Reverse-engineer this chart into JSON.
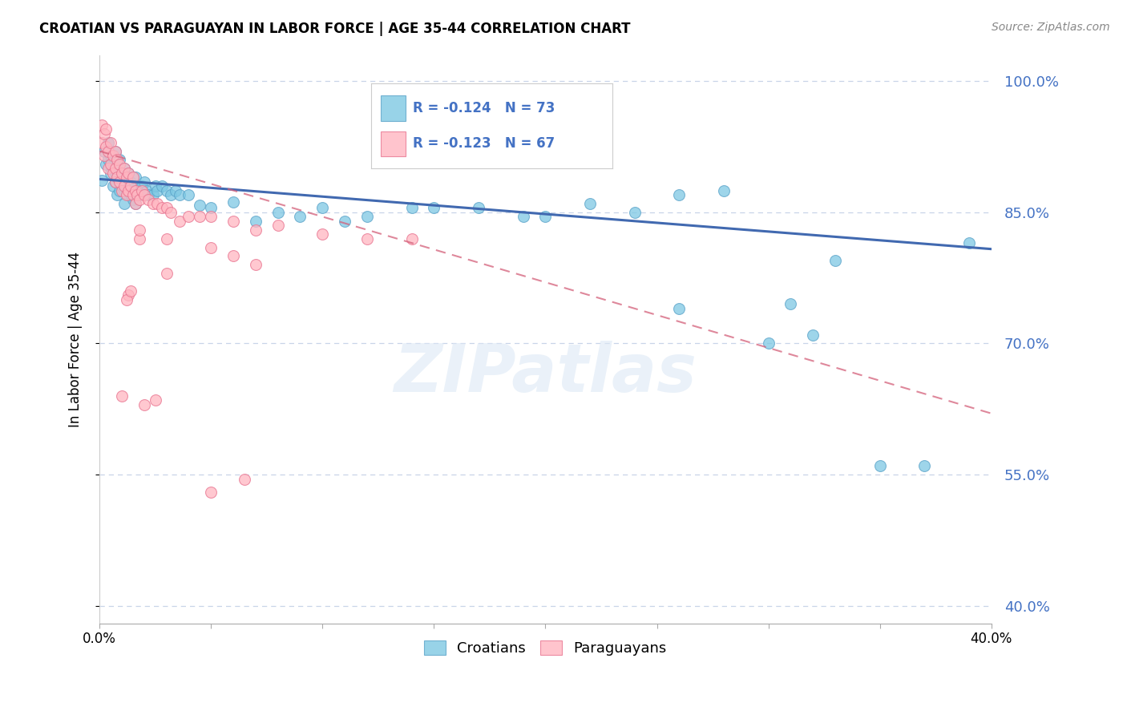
{
  "title": "CROATIAN VS PARAGUAYAN IN LABOR FORCE | AGE 35-44 CORRELATION CHART",
  "source": "Source: ZipAtlas.com",
  "ylabel": "In Labor Force | Age 35-44",
  "xlim": [
    0.0,
    0.4
  ],
  "ylim": [
    0.38,
    1.03
  ],
  "yticks": [
    0.4,
    0.55,
    0.7,
    0.85,
    1.0
  ],
  "ytick_labels": [
    "40.0%",
    "55.0%",
    "70.0%",
    "85.0%",
    "100.0%"
  ],
  "legend_blue_r": "-0.124",
  "legend_blue_n": "73",
  "legend_pink_r": "-0.123",
  "legend_pink_n": "67",
  "blue_color": "#7ec8e3",
  "pink_color": "#ffb6c1",
  "blue_edge": "#5ba3c9",
  "pink_edge": "#e87490",
  "blue_line_color": "#4169b0",
  "pink_line_color": "#d4607a",
  "axis_color": "#4472c4",
  "watermark": "ZIPatlas",
  "blue_x": [
    0.001,
    0.002,
    0.003,
    0.004,
    0.004,
    0.005,
    0.005,
    0.006,
    0.006,
    0.007,
    0.007,
    0.007,
    0.008,
    0.008,
    0.008,
    0.009,
    0.009,
    0.01,
    0.01,
    0.011,
    0.011,
    0.011,
    0.012,
    0.012,
    0.013,
    0.013,
    0.014,
    0.014,
    0.015,
    0.015,
    0.016,
    0.016,
    0.017,
    0.018,
    0.019,
    0.02,
    0.021,
    0.022,
    0.024,
    0.025,
    0.026,
    0.028,
    0.03,
    0.032,
    0.034,
    0.036,
    0.04,
    0.045,
    0.05,
    0.06,
    0.07,
    0.08,
    0.09,
    0.1,
    0.11,
    0.12,
    0.14,
    0.15,
    0.17,
    0.19,
    0.2,
    0.22,
    0.24,
    0.26,
    0.28,
    0.3,
    0.32,
    0.35,
    0.37,
    0.39,
    0.26,
    0.31,
    0.33
  ],
  "blue_y": [
    0.887,
    0.92,
    0.905,
    0.93,
    0.91,
    0.895,
    0.915,
    0.9,
    0.88,
    0.895,
    0.92,
    0.885,
    0.905,
    0.89,
    0.87,
    0.91,
    0.875,
    0.895,
    0.88,
    0.9,
    0.875,
    0.86,
    0.89,
    0.875,
    0.895,
    0.87,
    0.885,
    0.87,
    0.88,
    0.865,
    0.86,
    0.89,
    0.875,
    0.87,
    0.88,
    0.885,
    0.875,
    0.87,
    0.87,
    0.88,
    0.875,
    0.88,
    0.875,
    0.87,
    0.875,
    0.87,
    0.87,
    0.858,
    0.855,
    0.862,
    0.84,
    0.85,
    0.845,
    0.855,
    0.84,
    0.845,
    0.855,
    0.855,
    0.855,
    0.845,
    0.845,
    0.86,
    0.85,
    0.87,
    0.875,
    0.7,
    0.71,
    0.56,
    0.56,
    0.815,
    0.74,
    0.745,
    0.795
  ],
  "pink_x": [
    0.001,
    0.001,
    0.002,
    0.002,
    0.003,
    0.003,
    0.004,
    0.004,
    0.005,
    0.005,
    0.006,
    0.006,
    0.007,
    0.007,
    0.007,
    0.008,
    0.008,
    0.009,
    0.009,
    0.01,
    0.01,
    0.011,
    0.011,
    0.012,
    0.012,
    0.013,
    0.013,
    0.014,
    0.015,
    0.015,
    0.016,
    0.016,
    0.017,
    0.018,
    0.019,
    0.02,
    0.022,
    0.024,
    0.026,
    0.028,
    0.03,
    0.032,
    0.036,
    0.04,
    0.045,
    0.05,
    0.06,
    0.07,
    0.08,
    0.1,
    0.12,
    0.14,
    0.03,
    0.05,
    0.06,
    0.07,
    0.03,
    0.018,
    0.018,
    0.013,
    0.012,
    0.014,
    0.05,
    0.065,
    0.01,
    0.02,
    0.025
  ],
  "pink_y": [
    0.93,
    0.95,
    0.94,
    0.915,
    0.925,
    0.945,
    0.92,
    0.9,
    0.93,
    0.905,
    0.915,
    0.895,
    0.92,
    0.9,
    0.885,
    0.91,
    0.89,
    0.905,
    0.885,
    0.895,
    0.875,
    0.9,
    0.88,
    0.89,
    0.87,
    0.895,
    0.875,
    0.88,
    0.89,
    0.87,
    0.875,
    0.86,
    0.87,
    0.865,
    0.875,
    0.87,
    0.865,
    0.86,
    0.86,
    0.855,
    0.855,
    0.85,
    0.84,
    0.845,
    0.845,
    0.845,
    0.84,
    0.83,
    0.835,
    0.825,
    0.82,
    0.82,
    0.82,
    0.81,
    0.8,
    0.79,
    0.78,
    0.82,
    0.83,
    0.755,
    0.75,
    0.76,
    0.53,
    0.545,
    0.64,
    0.63,
    0.635
  ],
  "blue_trendline_x": [
    0.0,
    0.4
  ],
  "blue_trendline_y": [
    0.888,
    0.808
  ],
  "pink_trendline_x": [
    0.0,
    0.4
  ],
  "pink_trendline_y": [
    0.92,
    0.62
  ]
}
